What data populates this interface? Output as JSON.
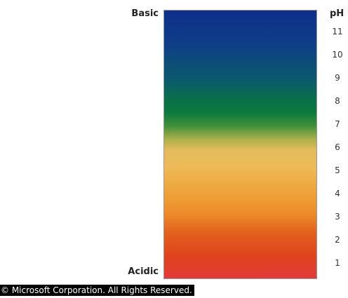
{
  "labels": {
    "top": "Basic",
    "bottom": "Acidic",
    "scale_title": "pH"
  },
  "scale": {
    "ticks": [
      "11",
      "10",
      "9",
      "8",
      "7",
      "6",
      "5",
      "4",
      "3",
      "2",
      "1"
    ],
    "colors": {
      "top": "#0f2f8a",
      "neutral_green": "#0c7a3d",
      "yellow": "#e3bb5c",
      "orange": "#ee9e33",
      "bottom": "#e23a3a"
    }
  },
  "footer": {
    "copyright": "© Microsoft Corporation. All Rights Reserved."
  }
}
